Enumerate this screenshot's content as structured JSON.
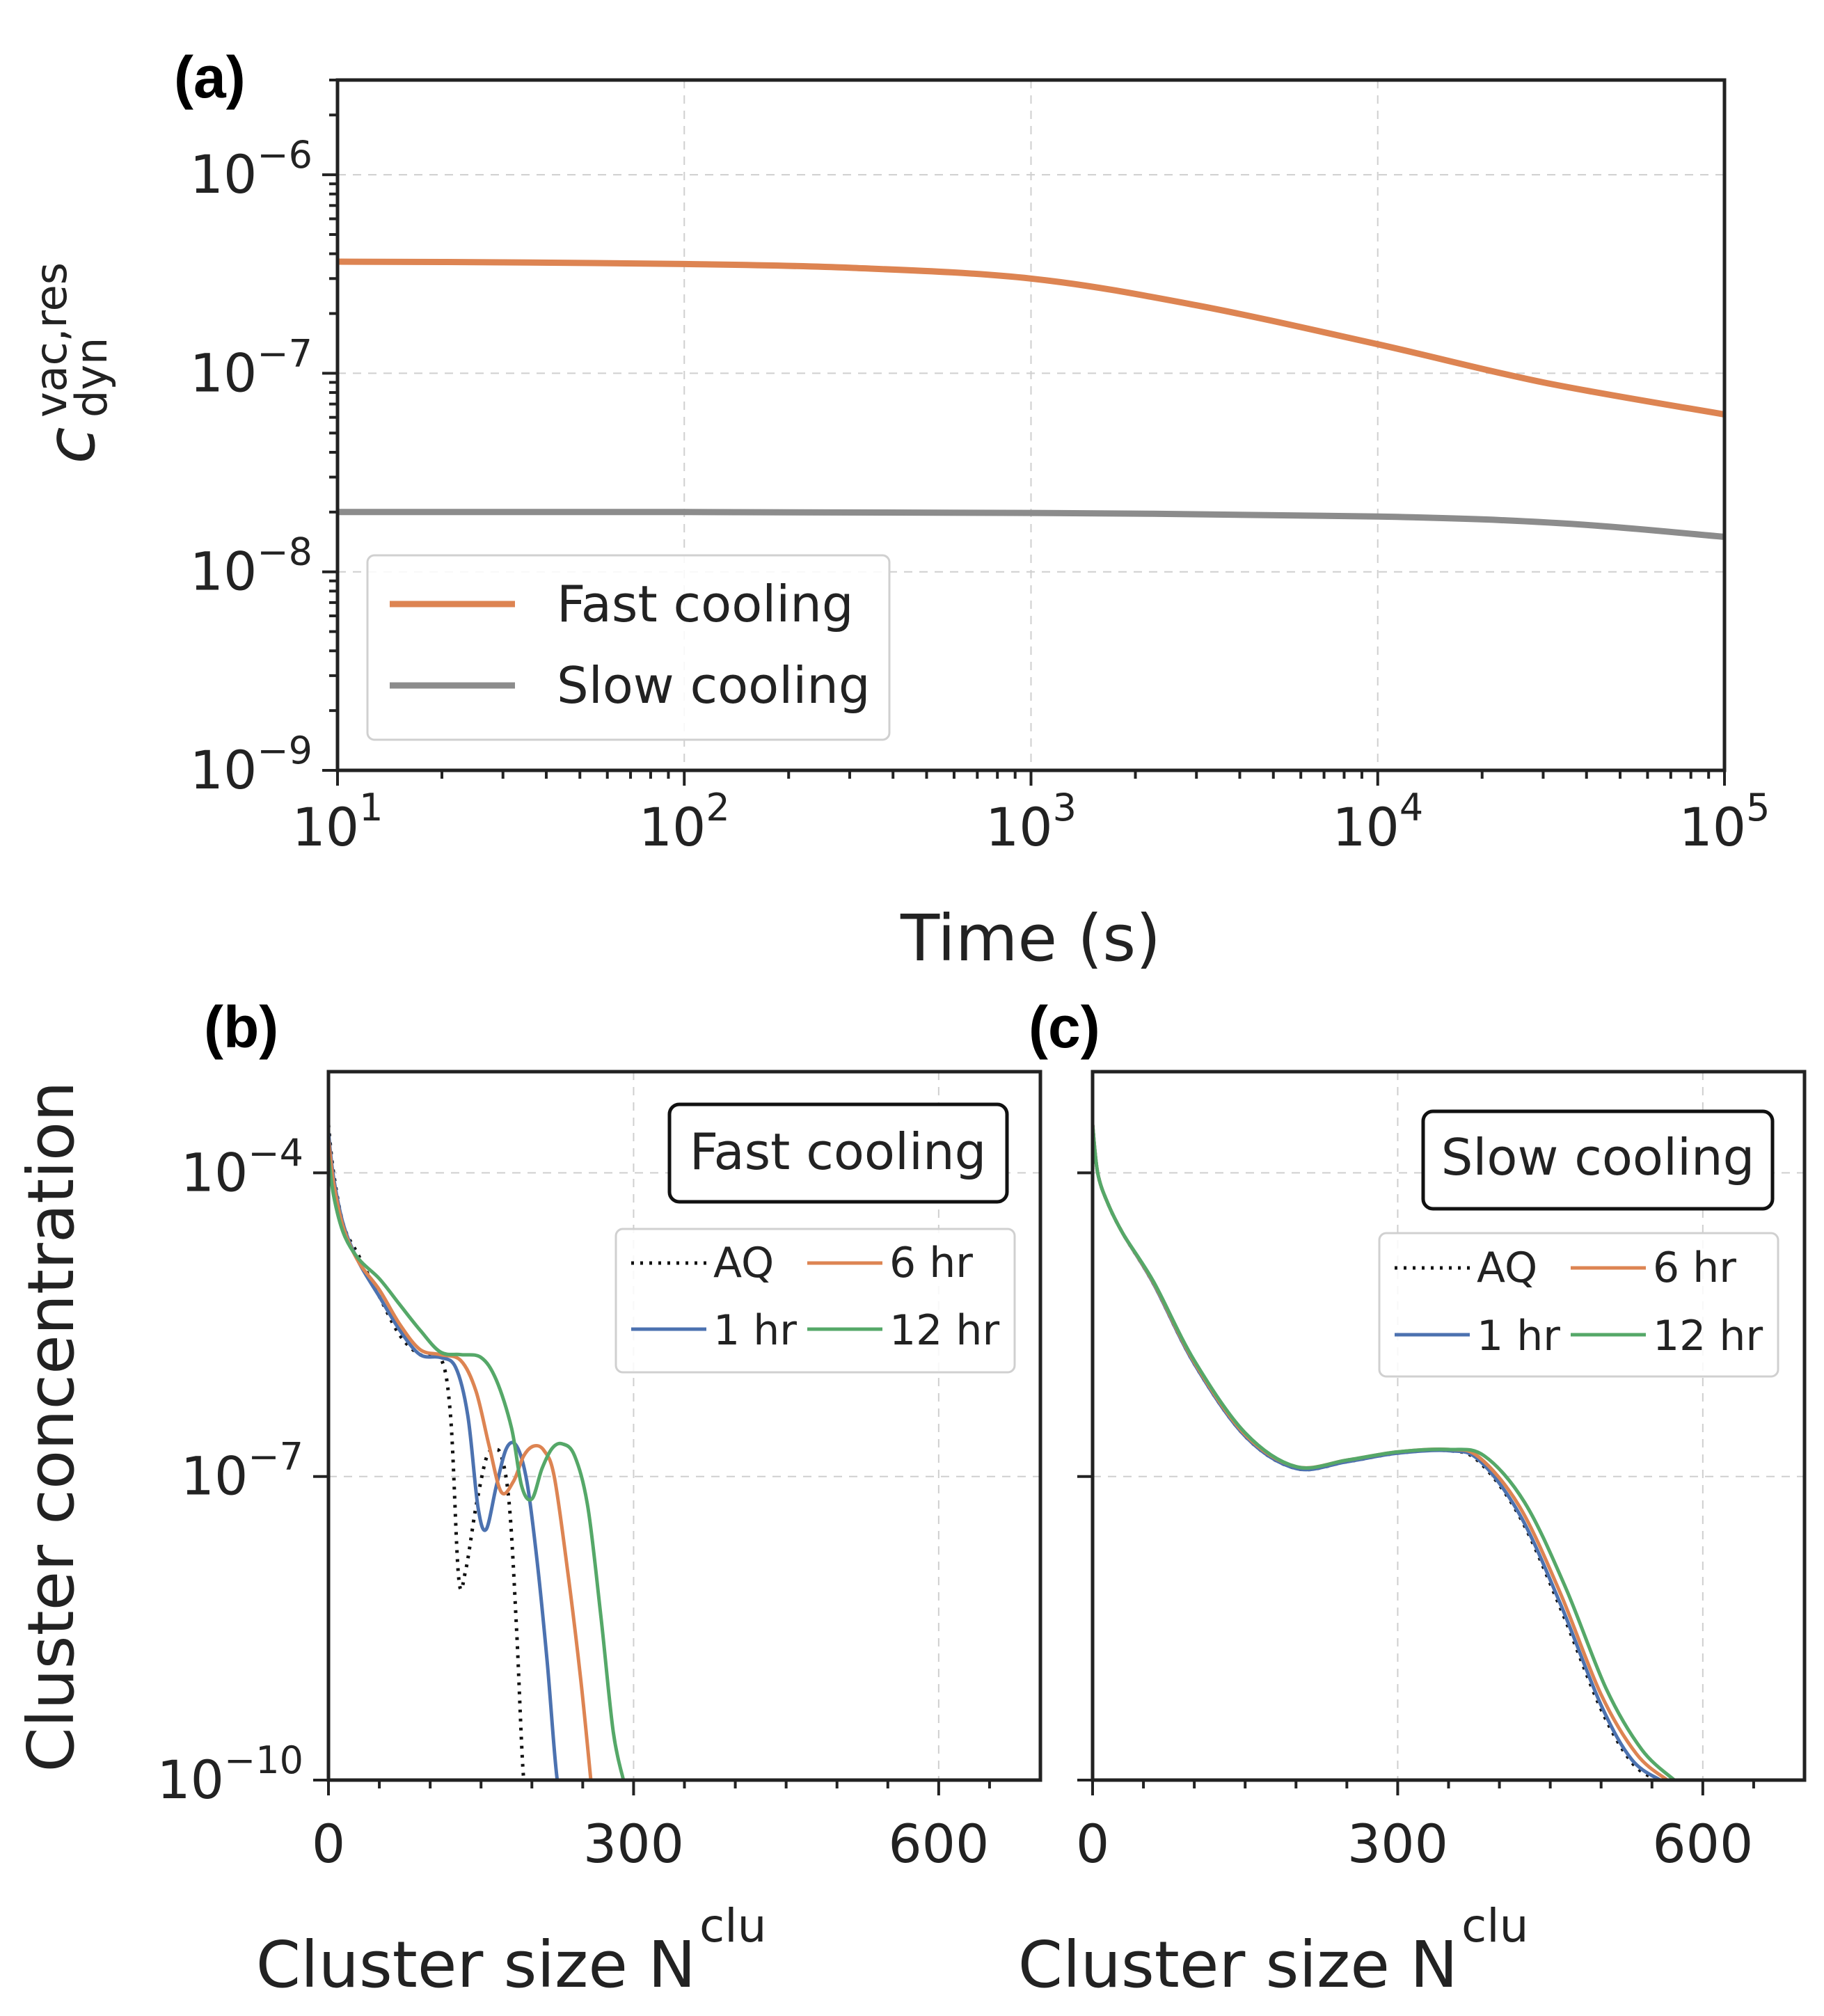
{
  "colors": {
    "fast": "#dd8452",
    "slow": "#8c8c8c",
    "aq": "#111111",
    "hr1": "#4c72b0",
    "hr6": "#dd8452",
    "hr12": "#55a868"
  },
  "chart_data": [
    {
      "id": "a",
      "panel_label": "(a)",
      "type": "line",
      "xscale": "log",
      "yscale": "log",
      "xlabel": "Time (s)",
      "ylabel_base": "c",
      "ylabel_sup": "vac,res",
      "ylabel_sub": "dyn",
      "xlim": [
        10,
        100000
      ],
      "ylim": [
        1e-09,
        3e-06
      ],
      "x_ticks": [
        {
          "value": 10,
          "base": "10",
          "exp": "1"
        },
        {
          "value": 100,
          "base": "10",
          "exp": "2"
        },
        {
          "value": 1000,
          "base": "10",
          "exp": "3"
        },
        {
          "value": 10000,
          "base": "10",
          "exp": "4"
        },
        {
          "value": 100000,
          "base": "10",
          "exp": "5"
        }
      ],
      "y_ticks": [
        {
          "value": 1e-09,
          "base": "10",
          "exp": "−9"
        },
        {
          "value": 1e-08,
          "base": "10",
          "exp": "−8"
        },
        {
          "value": 1e-07,
          "base": "10",
          "exp": "−7"
        },
        {
          "value": 1e-06,
          "base": "10",
          "exp": "−6"
        }
      ],
      "grid": true,
      "legend_position": "lower-left",
      "series": [
        {
          "name": "Fast cooling",
          "color_key": "fast",
          "style": "solid",
          "x": [
            10,
            30,
            100,
            300,
            1000,
            3000,
            10000,
            30000,
            100000
          ],
          "y": [
            3.65e-07,
            3.62e-07,
            3.55e-07,
            3.4e-07,
            3e-07,
            2.2e-07,
            1.4e-07,
            9e-08,
            6.2e-08
          ]
        },
        {
          "name": "Slow cooling",
          "color_key": "slow",
          "style": "solid",
          "x": [
            10,
            100,
            1000,
            10000,
            35000,
            100000
          ],
          "y": [
            2e-08,
            2e-08,
            1.98e-08,
            1.9e-08,
            1.75e-08,
            1.5e-08
          ]
        }
      ]
    },
    {
      "id": "b",
      "panel_label": "(b)",
      "type": "line",
      "xscale": "linear",
      "yscale": "log",
      "xlabel": "Cluster size N",
      "xlabel_sup": "clu",
      "ylabel": "Cluster concentration",
      "xlim": [
        0,
        700
      ],
      "ylim": [
        1e-10,
        0.001
      ],
      "x_ticks": [
        {
          "value": 0,
          "label": "0"
        },
        {
          "value": 300,
          "label": "300"
        },
        {
          "value": 600,
          "label": "600"
        }
      ],
      "y_ticks": [
        {
          "value": 1e-10,
          "base": "10",
          "exp": "−10"
        },
        {
          "value": 1e-07,
          "base": "10",
          "exp": "−7"
        },
        {
          "value": 0.0001,
          "base": "10",
          "exp": "−4"
        }
      ],
      "grid": true,
      "title_box": "Fast cooling",
      "legend_position": "upper-right",
      "series": [
        {
          "name": "AQ",
          "color_key": "aq",
          "style": "dotted",
          "x": [
            0,
            5,
            15,
            30,
            50,
            70,
            90,
            110,
            120,
            128,
            135,
            145,
            155,
            162,
            170,
            178,
            185,
            192,
            198,
            203,
            207
          ],
          "y": [
            0.0003,
            0.0001,
            3e-05,
            1.5e-05,
            6e-06,
            2.5e-06,
            1.6e-06,
            1.5e-06,
            4e-07,
            1e-08,
            1.2e-08,
            5e-08,
            1.5e-07,
            1.8e-07,
            1.6e-07,
            5e-08,
            3e-09,
            1e-10,
            1e-10,
            1e-10,
            1e-10
          ]
        },
        {
          "name": "1 hr",
          "color_key": "hr1",
          "style": "solid",
          "x": [
            0,
            5,
            15,
            30,
            50,
            70,
            90,
            110,
            125,
            137,
            147,
            155,
            165,
            175,
            185,
            195,
            205,
            215,
            225,
            232
          ],
          "y": [
            0.00025,
            9e-05,
            3e-05,
            1.3e-05,
            6e-06,
            2.8e-06,
            1.6e-06,
            1.5e-06,
            1.2e-06,
            4e-07,
            5e-08,
            3e-08,
            8e-08,
            1.9e-07,
            2e-07,
            9e-08,
            1.5e-08,
            1.5e-09,
            1e-10,
            1e-10
          ]
        },
        {
          "name": "6 hr",
          "color_key": "hr6",
          "style": "solid",
          "x": [
            0,
            5,
            15,
            30,
            50,
            70,
            90,
            110,
            130,
            145,
            158,
            170,
            182,
            192,
            202,
            212,
            222,
            235,
            248,
            258
          ],
          "y": [
            0.00022,
            8e-05,
            2.8e-05,
            1.3e-05,
            7e-06,
            3.2e-06,
            1.8e-06,
            1.6e-06,
            1.4e-06,
            7e-07,
            2e-07,
            7e-08,
            9e-08,
            1.6e-07,
            2e-07,
            1.8e-07,
            1e-07,
            1.2e-08,
            1e-09,
            1e-10
          ]
        },
        {
          "name": "12 hr",
          "color_key": "hr12",
          "style": "solid",
          "x": [
            0,
            5,
            15,
            30,
            50,
            70,
            90,
            110,
            130,
            150,
            165,
            180,
            190,
            200,
            210,
            220,
            230,
            242,
            255,
            268,
            280,
            290
          ],
          "y": [
            0.00015,
            6e-05,
            2.5e-05,
            1.4e-05,
            9e-06,
            5e-06,
            2.8e-06,
            1.7e-06,
            1.6e-06,
            1.5e-06,
            9e-07,
            3e-07,
            8e-08,
            6e-08,
            1.2e-07,
            1.9e-07,
            2.1e-07,
            1.6e-07,
            5e-08,
            4e-09,
            3e-10,
            1e-10
          ]
        }
      ]
    },
    {
      "id": "c",
      "panel_label": "(c)",
      "type": "line",
      "xscale": "linear",
      "yscale": "log",
      "xlabel": "Cluster size N",
      "xlabel_sup": "clu",
      "xlim": [
        0,
        700
      ],
      "ylim": [
        1e-10,
        0.001
      ],
      "x_ticks": [
        {
          "value": 0,
          "label": "0"
        },
        {
          "value": 300,
          "label": "300"
        },
        {
          "value": 600,
          "label": "600"
        }
      ],
      "y_ticks": [
        {
          "value": 1e-10
        },
        {
          "value": 1e-07
        },
        {
          "value": 0.0001
        }
      ],
      "grid": true,
      "title_box": "Slow cooling",
      "legend_position": "upper-right",
      "series": [
        {
          "name": "AQ",
          "color_key": "aq",
          "style": "dotted",
          "x": [
            0,
            5,
            15,
            30,
            60,
            100,
            150,
            200,
            250,
            300,
            350,
            380,
            420,
            460,
            500,
            530,
            555
          ],
          "y": [
            0.0003,
            0.0001,
            5e-05,
            2.5e-05,
            8e-06,
            1.3e-06,
            2.5e-07,
            1.2e-07,
            1.4e-07,
            1.7e-07,
            1.8e-07,
            1.4e-07,
            4e-08,
            5e-09,
            5e-10,
            1.5e-10,
            1e-10
          ]
        },
        {
          "name": "1 hr",
          "color_key": "hr1",
          "style": "solid",
          "x": [
            0,
            5,
            15,
            30,
            60,
            100,
            150,
            200,
            250,
            300,
            350,
            380,
            420,
            460,
            500,
            530,
            558
          ],
          "y": [
            0.0003,
            0.0001,
            5e-05,
            2.5e-05,
            8e-06,
            1.3e-06,
            2.5e-07,
            1.2e-07,
            1.4e-07,
            1.7e-07,
            1.8e-07,
            1.45e-07,
            4.2e-08,
            5.5e-09,
            5.5e-10,
            1.6e-10,
            1e-10
          ]
        },
        {
          "name": "6 hr",
          "color_key": "hr6",
          "style": "solid",
          "x": [
            0,
            5,
            15,
            30,
            60,
            100,
            150,
            200,
            250,
            300,
            350,
            380,
            420,
            460,
            500,
            535,
            565
          ],
          "y": [
            0.0003,
            0.0001,
            5e-05,
            2.5e-05,
            8.2e-06,
            1.35e-06,
            2.6e-07,
            1.25e-07,
            1.45e-07,
            1.75e-07,
            1.85e-07,
            1.55e-07,
            5e-08,
            7e-09,
            7e-10,
            1.8e-10,
            1e-10
          ]
        },
        {
          "name": "12 hr",
          "color_key": "hr12",
          "style": "solid",
          "x": [
            0,
            5,
            15,
            30,
            60,
            100,
            150,
            200,
            250,
            300,
            350,
            385,
            425,
            465,
            505,
            540,
            572
          ],
          "y": [
            0.0003,
            0.0001,
            5e-05,
            2.5e-05,
            8.4e-06,
            1.4e-06,
            2.7e-07,
            1.25e-07,
            1.45e-07,
            1.75e-07,
            1.85e-07,
            1.6e-07,
            5.5e-08,
            8e-09,
            8e-10,
            2e-10,
            1e-10
          ]
        }
      ]
    }
  ]
}
